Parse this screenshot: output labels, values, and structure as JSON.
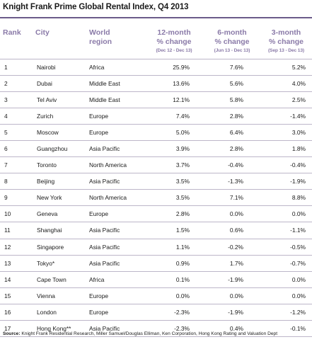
{
  "title": "Knight Frank Prime Global Rental Index, Q4 2013",
  "headers": {
    "rank": "Rank",
    "city": "City",
    "region_line1": "World",
    "region_line2": "region",
    "m12_line1": "12-month",
    "m12_line2": "% change",
    "m12_sub": "(Dec 12 - Dec 13)",
    "m6_line1": "6-month",
    "m6_line2": "% change",
    "m6_sub": "(Jun 13 - Dec 13)",
    "m3_line1": "3-month",
    "m3_line2": "% change",
    "m3_sub": "(Sep 13 - Dec 13)"
  },
  "rows": [
    {
      "rank": "1",
      "city": "Nairobi",
      "region": "Africa",
      "m12": "25.9%",
      "m6": "7.6%",
      "m3": "5.2%"
    },
    {
      "rank": "2",
      "city": "Dubai",
      "region": "Middle East",
      "m12": "13.6%",
      "m6": "5.6%",
      "m3": "4.0%"
    },
    {
      "rank": "3",
      "city": "Tel Aviv",
      "region": "Middle East",
      "m12": "12.1%",
      "m6": "5.8%",
      "m3": "2.5%"
    },
    {
      "rank": "4",
      "city": "Zurich",
      "region": "Europe",
      "m12": "7.4%",
      "m6": "2.8%",
      "m3": "-1.4%"
    },
    {
      "rank": "5",
      "city": "Moscow",
      "region": "Europe",
      "m12": "5.0%",
      "m6": "6.4%",
      "m3": "3.0%"
    },
    {
      "rank": "6",
      "city": "Guangzhou",
      "region": "Asia Pacific",
      "m12": "3.9%",
      "m6": "2.8%",
      "m3": "1.8%"
    },
    {
      "rank": "7",
      "city": "Toronto",
      "region": "North America",
      "m12": "3.7%",
      "m6": "-0.4%",
      "m3": "-0.4%"
    },
    {
      "rank": "8",
      "city": "Beijing",
      "region": "Asia Pacific",
      "m12": "3.5%",
      "m6": "-1.3%",
      "m3": "-1.9%"
    },
    {
      "rank": "9",
      "city": "New York",
      "region": "North America",
      "m12": "3.5%",
      "m6": "7.1%",
      "m3": "8.8%"
    },
    {
      "rank": "10",
      "city": "Geneva",
      "region": "Europe",
      "m12": "2.8%",
      "m6": "0.0%",
      "m3": "0.0%"
    },
    {
      "rank": "11",
      "city": "Shanghai",
      "region": "Asia Pacific",
      "m12": "1.5%",
      "m6": "0.6%",
      "m3": "-1.1%"
    },
    {
      "rank": "12",
      "city": "Singapore",
      "region": "Asia Pacific",
      "m12": "1.1%",
      "m6": "-0.2%",
      "m3": "-0.5%"
    },
    {
      "rank": "13",
      "city": "Tokyo*",
      "region": "Asia Pacific",
      "m12": "0.9%",
      "m6": "1.7%",
      "m3": "-0.7%"
    },
    {
      "rank": "14",
      "city": "Cape Town",
      "region": "Africa",
      "m12": "0.1%",
      "m6": "-1.9%",
      "m3": "0.0%"
    },
    {
      "rank": "15",
      "city": "Vienna",
      "region": "Europe",
      "m12": "0.0%",
      "m6": "0.0%",
      "m3": "0.0%"
    },
    {
      "rank": "16",
      "city": "London",
      "region": "Europe",
      "m12": "-2.3%",
      "m6": "-1.9%",
      "m3": "-1.2%"
    },
    {
      "rank": "17",
      "city": "Hong Kong**",
      "region": "Asia Pacific",
      "m12": "-2.3%",
      "m6": "0.4%",
      "m3": "-0.1%"
    }
  ],
  "source": {
    "label": "Source:",
    "text": " Knight Frank Residential Research, Miller Samuel/Douglas Elliman, Ken Corporation, Hong Kong Rating and Valuation Dept"
  },
  "colors": {
    "header_text": "#8a7aa8",
    "rule": "#6b5b8a",
    "row_line": "#bdb6c9"
  }
}
